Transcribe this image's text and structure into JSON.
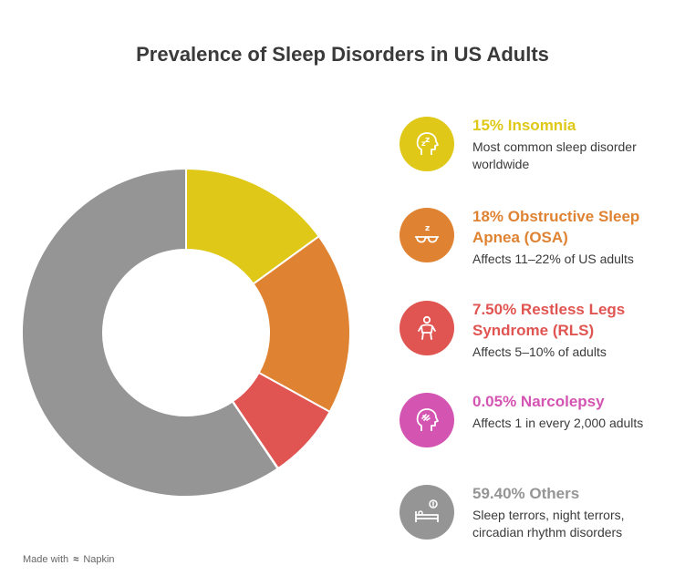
{
  "title": "Prevalence of Sleep Disorders in US Adults",
  "footer": {
    "made_with": "Made with",
    "brand": "Napkin"
  },
  "chart_data": {
    "type": "pie",
    "variant": "donut",
    "categories": [
      "Insomnia",
      "Obstructive Sleep Apnea (OSA)",
      "Restless Legs Syndrome (RLS)",
      "Narcolepsy",
      "Others"
    ],
    "values": [
      15,
      18,
      7.5,
      0.05,
      59.4
    ],
    "colors": [
      "#dfc817",
      "#df8333",
      "#e05552",
      "#d454b2",
      "#959595"
    ],
    "start_angle_deg": 0,
    "direction": "clockwise"
  },
  "legend": [
    {
      "title": "15% Insomnia",
      "desc": "Most common sleep disorder worldwide",
      "color": "#dfc817",
      "icon": "head-sleep-icon"
    },
    {
      "title": "18% Obstructive Sleep Apnea (OSA)",
      "desc": "Affects 11–22% of US adults",
      "color": "#df8333",
      "icon": "sleep-mask-icon"
    },
    {
      "title": "7.50% Restless Legs Syndrome (RLS)",
      "desc": "Affects 5–10% of adults",
      "color": "#e05552",
      "icon": "person-restless-icon"
    },
    {
      "title": "0.05% Narcolepsy",
      "desc": "Affects 1 in every 2,000 adults",
      "color": "#d454b2",
      "icon": "head-brain-icon"
    },
    {
      "title": "59.40% Others",
      "desc": "Sleep terrors, night terrors, circadian rhythm disorders",
      "color": "#959595",
      "icon": "bed-alert-icon"
    }
  ]
}
